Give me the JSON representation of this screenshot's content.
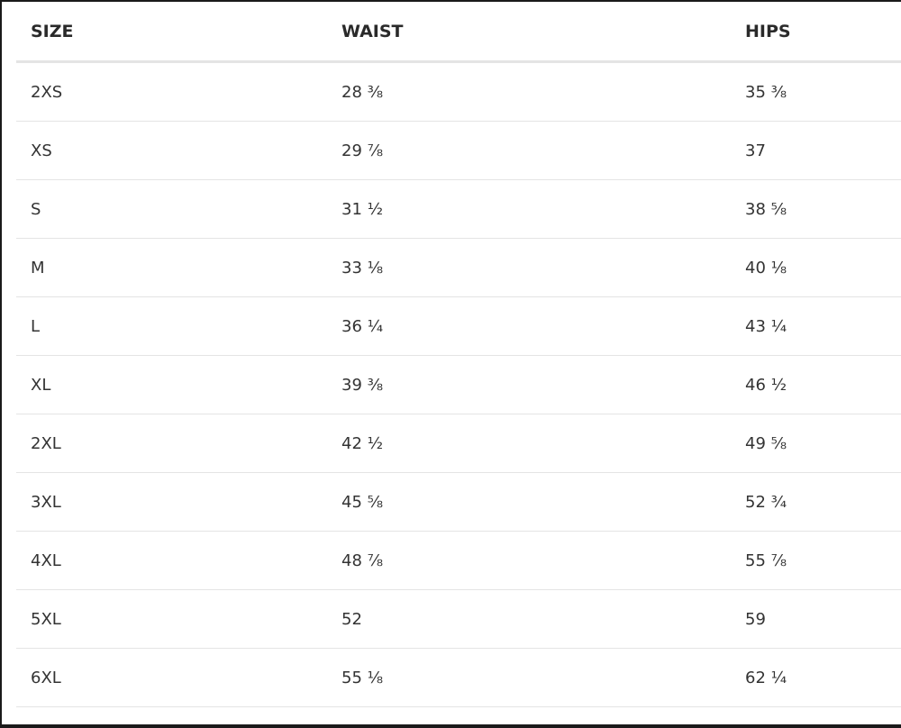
{
  "table": {
    "headers": [
      "SIZE",
      "WAIST",
      "HIPS"
    ],
    "rows": [
      [
        "2XS",
        "28 ⅜",
        "35 ⅜"
      ],
      [
        "XS",
        "29 ⅞",
        "37"
      ],
      [
        "S",
        "31 ½",
        "38 ⅝"
      ],
      [
        "M",
        "33 ⅛",
        "40 ⅛"
      ],
      [
        "L",
        "36 ¼",
        "43 ¼"
      ],
      [
        "XL",
        "39 ⅜",
        "46 ½"
      ],
      [
        "2XL",
        "42 ½",
        "49 ⅝"
      ],
      [
        "3XL",
        "45 ⅝",
        "52 ¾"
      ],
      [
        "4XL",
        "48 ⅞",
        "55 ⅞"
      ],
      [
        "5XL",
        "52",
        "59"
      ],
      [
        "6XL",
        "55 ⅛",
        "62 ¼"
      ]
    ]
  }
}
